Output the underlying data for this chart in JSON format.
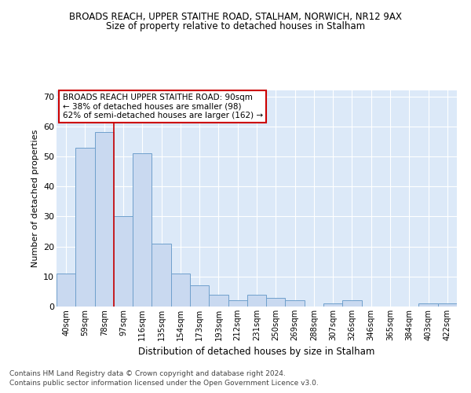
{
  "title1": "BROADS REACH, UPPER STAITHE ROAD, STALHAM, NORWICH, NR12 9AX",
  "title2": "Size of property relative to detached houses in Stalham",
  "xlabel": "Distribution of detached houses by size in Stalham",
  "ylabel": "Number of detached properties",
  "bar_labels": [
    "40sqm",
    "59sqm",
    "78sqm",
    "97sqm",
    "116sqm",
    "135sqm",
    "154sqm",
    "173sqm",
    "193sqm",
    "212sqm",
    "231sqm",
    "250sqm",
    "269sqm",
    "288sqm",
    "307sqm",
    "326sqm",
    "346sqm",
    "365sqm",
    "384sqm",
    "403sqm",
    "422sqm"
  ],
  "bar_values": [
    11,
    53,
    58,
    30,
    51,
    21,
    11,
    7,
    4,
    2,
    4,
    3,
    2,
    0,
    1,
    2,
    0,
    0,
    0,
    1,
    1
  ],
  "bar_color": "#c9d9f0",
  "bar_edge_color": "#6fa0cc",
  "vline_x": 2.5,
  "vline_color": "#cc0000",
  "ylim": [
    0,
    72
  ],
  "yticks": [
    0,
    10,
    20,
    30,
    40,
    50,
    60,
    70
  ],
  "annotation_title": "BROADS REACH UPPER STAITHE ROAD: 90sqm",
  "annotation_line2": "← 38% of detached houses are smaller (98)",
  "annotation_line3": "62% of semi-detached houses are larger (162) →",
  "annotation_box_facecolor": "#ffffff",
  "annotation_box_edgecolor": "#cc0000",
  "footer1": "Contains HM Land Registry data © Crown copyright and database right 2024.",
  "footer2": "Contains public sector information licensed under the Open Government Licence v3.0.",
  "fig_bg_color": "#ffffff",
  "plot_bg_color": "#dce9f8"
}
